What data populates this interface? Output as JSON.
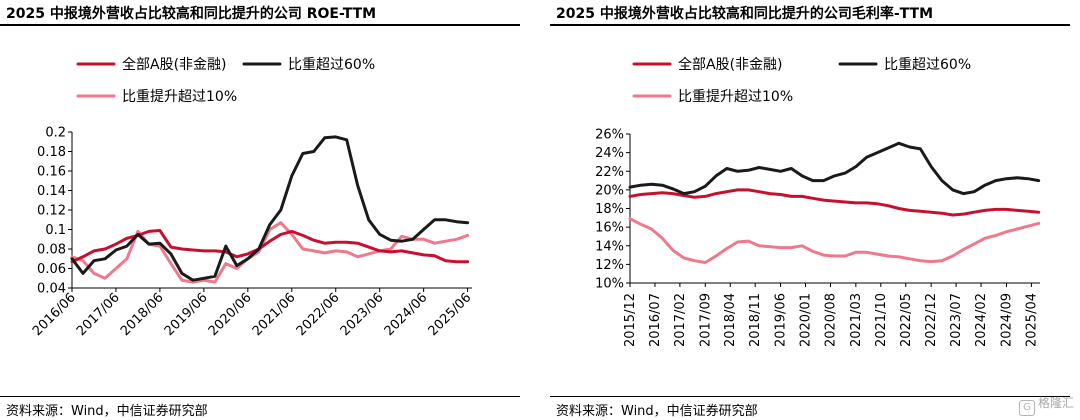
{
  "colors": {
    "red": "#c8102e",
    "black": "#1a1a1a",
    "pink": "#f0788a"
  },
  "panels": [
    {
      "title": "2025 中报境外营收占比较高和同比提升的公司 ROE-TTM",
      "source": "资料来源：Wind，中信证券研究部"
    },
    {
      "title": "2025 中报境外营收占比较高和同比提升的公司毛利率-TTM",
      "source": "资料来源：Wind，中信证券研究部"
    }
  ],
  "watermark": {
    "text": "格隆汇",
    "icon": "glh-logo-icon"
  },
  "chart_data": [
    {
      "type": "line",
      "title": "2025 中报境外营收占比较高和同比提升的公司 ROE-TTM",
      "ylim": [
        0.04,
        0.2
      ],
      "yticks": [
        "0.04",
        "0.06",
        "0.08",
        "0.1",
        "0.12",
        "0.14",
        "0.16",
        "0.18",
        "0.2"
      ],
      "x": [
        2016.5,
        2016.75,
        2017.0,
        2017.25,
        2017.5,
        2017.75,
        2018.0,
        2018.25,
        2018.5,
        2018.75,
        2019.0,
        2019.25,
        2019.5,
        2019.75,
        2020.0,
        2020.25,
        2020.5,
        2020.75,
        2021.0,
        2021.25,
        2021.5,
        2021.75,
        2022.0,
        2022.25,
        2022.5,
        2022.75,
        2023.0,
        2023.25,
        2023.5,
        2023.75,
        2024.0,
        2024.25,
        2024.5,
        2024.75,
        2025.0,
        2025.25,
        2025.5
      ],
      "xlim": [
        2016.5,
        2025.6
      ],
      "xticks": [
        {
          "at": 2016.5,
          "label": "2016/06"
        },
        {
          "at": 2017.5,
          "label": "2017/06"
        },
        {
          "at": 2018.5,
          "label": "2018/06"
        },
        {
          "at": 2019.5,
          "label": "2019/06"
        },
        {
          "at": 2020.5,
          "label": "2020/06"
        },
        {
          "at": 2021.5,
          "label": "2021/06"
        },
        {
          "at": 2022.5,
          "label": "2022/06"
        },
        {
          "at": 2023.5,
          "label": "2023/06"
        },
        {
          "at": 2024.5,
          "label": "2024/06"
        },
        {
          "at": 2025.5,
          "label": "2025/06"
        }
      ],
      "series": [
        {
          "name": "全部A股(非金融)",
          "color": "red",
          "values": [
            0.067,
            0.072,
            0.078,
            0.08,
            0.085,
            0.091,
            0.094,
            0.098,
            0.099,
            0.082,
            0.08,
            0.079,
            0.078,
            0.078,
            0.077,
            0.072,
            0.075,
            0.08,
            0.088,
            0.095,
            0.098,
            0.094,
            0.089,
            0.086,
            0.087,
            0.087,
            0.086,
            0.082,
            0.078,
            0.077,
            0.078,
            0.076,
            0.074,
            0.073,
            0.068,
            0.067,
            0.067
          ]
        },
        {
          "name": "比重超过60%",
          "color": "black",
          "values": [
            0.07,
            0.055,
            0.068,
            0.07,
            0.079,
            0.083,
            0.095,
            0.085,
            0.086,
            0.075,
            0.055,
            0.048,
            0.05,
            0.052,
            0.083,
            0.063,
            0.07,
            0.08,
            0.105,
            0.12,
            0.155,
            0.178,
            0.18,
            0.194,
            0.195,
            0.192,
            0.145,
            0.11,
            0.095,
            0.089,
            0.088,
            0.09,
            0.1,
            0.11,
            0.11,
            0.108,
            0.107
          ]
        },
        {
          "name": "比重提升超过10%",
          "color": "pink",
          "values": [
            0.072,
            0.068,
            0.055,
            0.05,
            0.06,
            0.07,
            0.098,
            0.085,
            0.083,
            0.065,
            0.048,
            0.046,
            0.048,
            0.046,
            0.065,
            0.06,
            0.07,
            0.077,
            0.1,
            0.107,
            0.095,
            0.08,
            0.078,
            0.076,
            0.078,
            0.077,
            0.072,
            0.075,
            0.078,
            0.08,
            0.093,
            0.09,
            0.09,
            0.086,
            0.088,
            0.09,
            0.094
          ]
        }
      ],
      "legend_rows": [
        [
          "全部A股(非金融)",
          "比重超过60%"
        ],
        [
          "比重提升超过10%"
        ]
      ]
    },
    {
      "type": "line",
      "title": "2025 中报境外营收占比较高和同比提升的公司毛利率-TTM",
      "ylim": [
        10,
        26
      ],
      "yticks": [
        "10%",
        "12%",
        "14%",
        "16%",
        "18%",
        "20%",
        "22%",
        "24%",
        "26%"
      ],
      "x": [
        2015.92,
        2016.17,
        2016.42,
        2016.67,
        2016.92,
        2017.17,
        2017.42,
        2017.67,
        2017.92,
        2018.17,
        2018.42,
        2018.67,
        2018.92,
        2019.17,
        2019.42,
        2019.67,
        2019.92,
        2020.17,
        2020.42,
        2020.67,
        2020.92,
        2021.17,
        2021.42,
        2021.67,
        2021.92,
        2022.17,
        2022.42,
        2022.67,
        2022.92,
        2023.17,
        2023.42,
        2023.67,
        2023.92,
        2024.17,
        2024.42,
        2024.67,
        2024.92,
        2025.17,
        2025.42
      ],
      "xlim": [
        2015.92,
        2025.45
      ],
      "xticks": [
        {
          "at": 2015.92,
          "label": "2015/12"
        },
        {
          "at": 2016.5,
          "label": "2016/07"
        },
        {
          "at": 2017.08,
          "label": "2017/02"
        },
        {
          "at": 2017.67,
          "label": "2017/09"
        },
        {
          "at": 2018.25,
          "label": "2018/04"
        },
        {
          "at": 2018.83,
          "label": "2018/11"
        },
        {
          "at": 2019.42,
          "label": "2019/06"
        },
        {
          "at": 2020.0,
          "label": "2020/01"
        },
        {
          "at": 2020.58,
          "label": "2020/08"
        },
        {
          "at": 2021.17,
          "label": "2021/03"
        },
        {
          "at": 2021.75,
          "label": "2021/10"
        },
        {
          "at": 2022.33,
          "label": "2022/05"
        },
        {
          "at": 2022.92,
          "label": "2022/12"
        },
        {
          "at": 2023.5,
          "label": "2023/07"
        },
        {
          "at": 2024.08,
          "label": "2024/02"
        },
        {
          "at": 2024.67,
          "label": "2024/09"
        },
        {
          "at": 2025.25,
          "label": "2025/04"
        }
      ],
      "series": [
        {
          "name": "全部A股(非金融)",
          "color": "red",
          "values": [
            19.3,
            19.5,
            19.6,
            19.7,
            19.6,
            19.4,
            19.2,
            19.3,
            19.6,
            19.8,
            20.0,
            20.0,
            19.8,
            19.6,
            19.5,
            19.3,
            19.3,
            19.1,
            18.9,
            18.8,
            18.7,
            18.6,
            18.6,
            18.5,
            18.3,
            18.0,
            17.8,
            17.7,
            17.6,
            17.5,
            17.3,
            17.4,
            17.6,
            17.8,
            17.9,
            17.9,
            17.8,
            17.7,
            17.6
          ]
        },
        {
          "name": "比重超过60%",
          "color": "black",
          "values": [
            20.3,
            20.5,
            20.6,
            20.5,
            20.1,
            19.6,
            19.8,
            20.4,
            21.5,
            22.3,
            22.0,
            22.1,
            22.4,
            22.2,
            22.0,
            22.3,
            21.5,
            21.0,
            21.0,
            21.5,
            21.8,
            22.5,
            23.5,
            24.0,
            24.5,
            25.0,
            24.6,
            24.4,
            22.5,
            21.0,
            20.0,
            19.6,
            19.8,
            20.5,
            21.0,
            21.2,
            21.3,
            21.2,
            21.0
          ]
        },
        {
          "name": "比重提升超过10%",
          "color": "pink",
          "values": [
            16.9,
            16.3,
            15.8,
            14.8,
            13.5,
            12.7,
            12.4,
            12.2,
            12.9,
            13.7,
            14.4,
            14.5,
            14.0,
            13.9,
            13.8,
            13.8,
            14.0,
            13.4,
            13.0,
            12.9,
            12.9,
            13.3,
            13.3,
            13.1,
            12.9,
            12.8,
            12.6,
            12.4,
            12.3,
            12.4,
            12.9,
            13.6,
            14.2,
            14.8,
            15.1,
            15.5,
            15.8,
            16.1,
            16.4
          ]
        }
      ],
      "legend_rows": [
        [
          "全部A股(非金融)",
          "比重超过60%"
        ],
        [
          "比重提升超过10%"
        ]
      ]
    }
  ]
}
